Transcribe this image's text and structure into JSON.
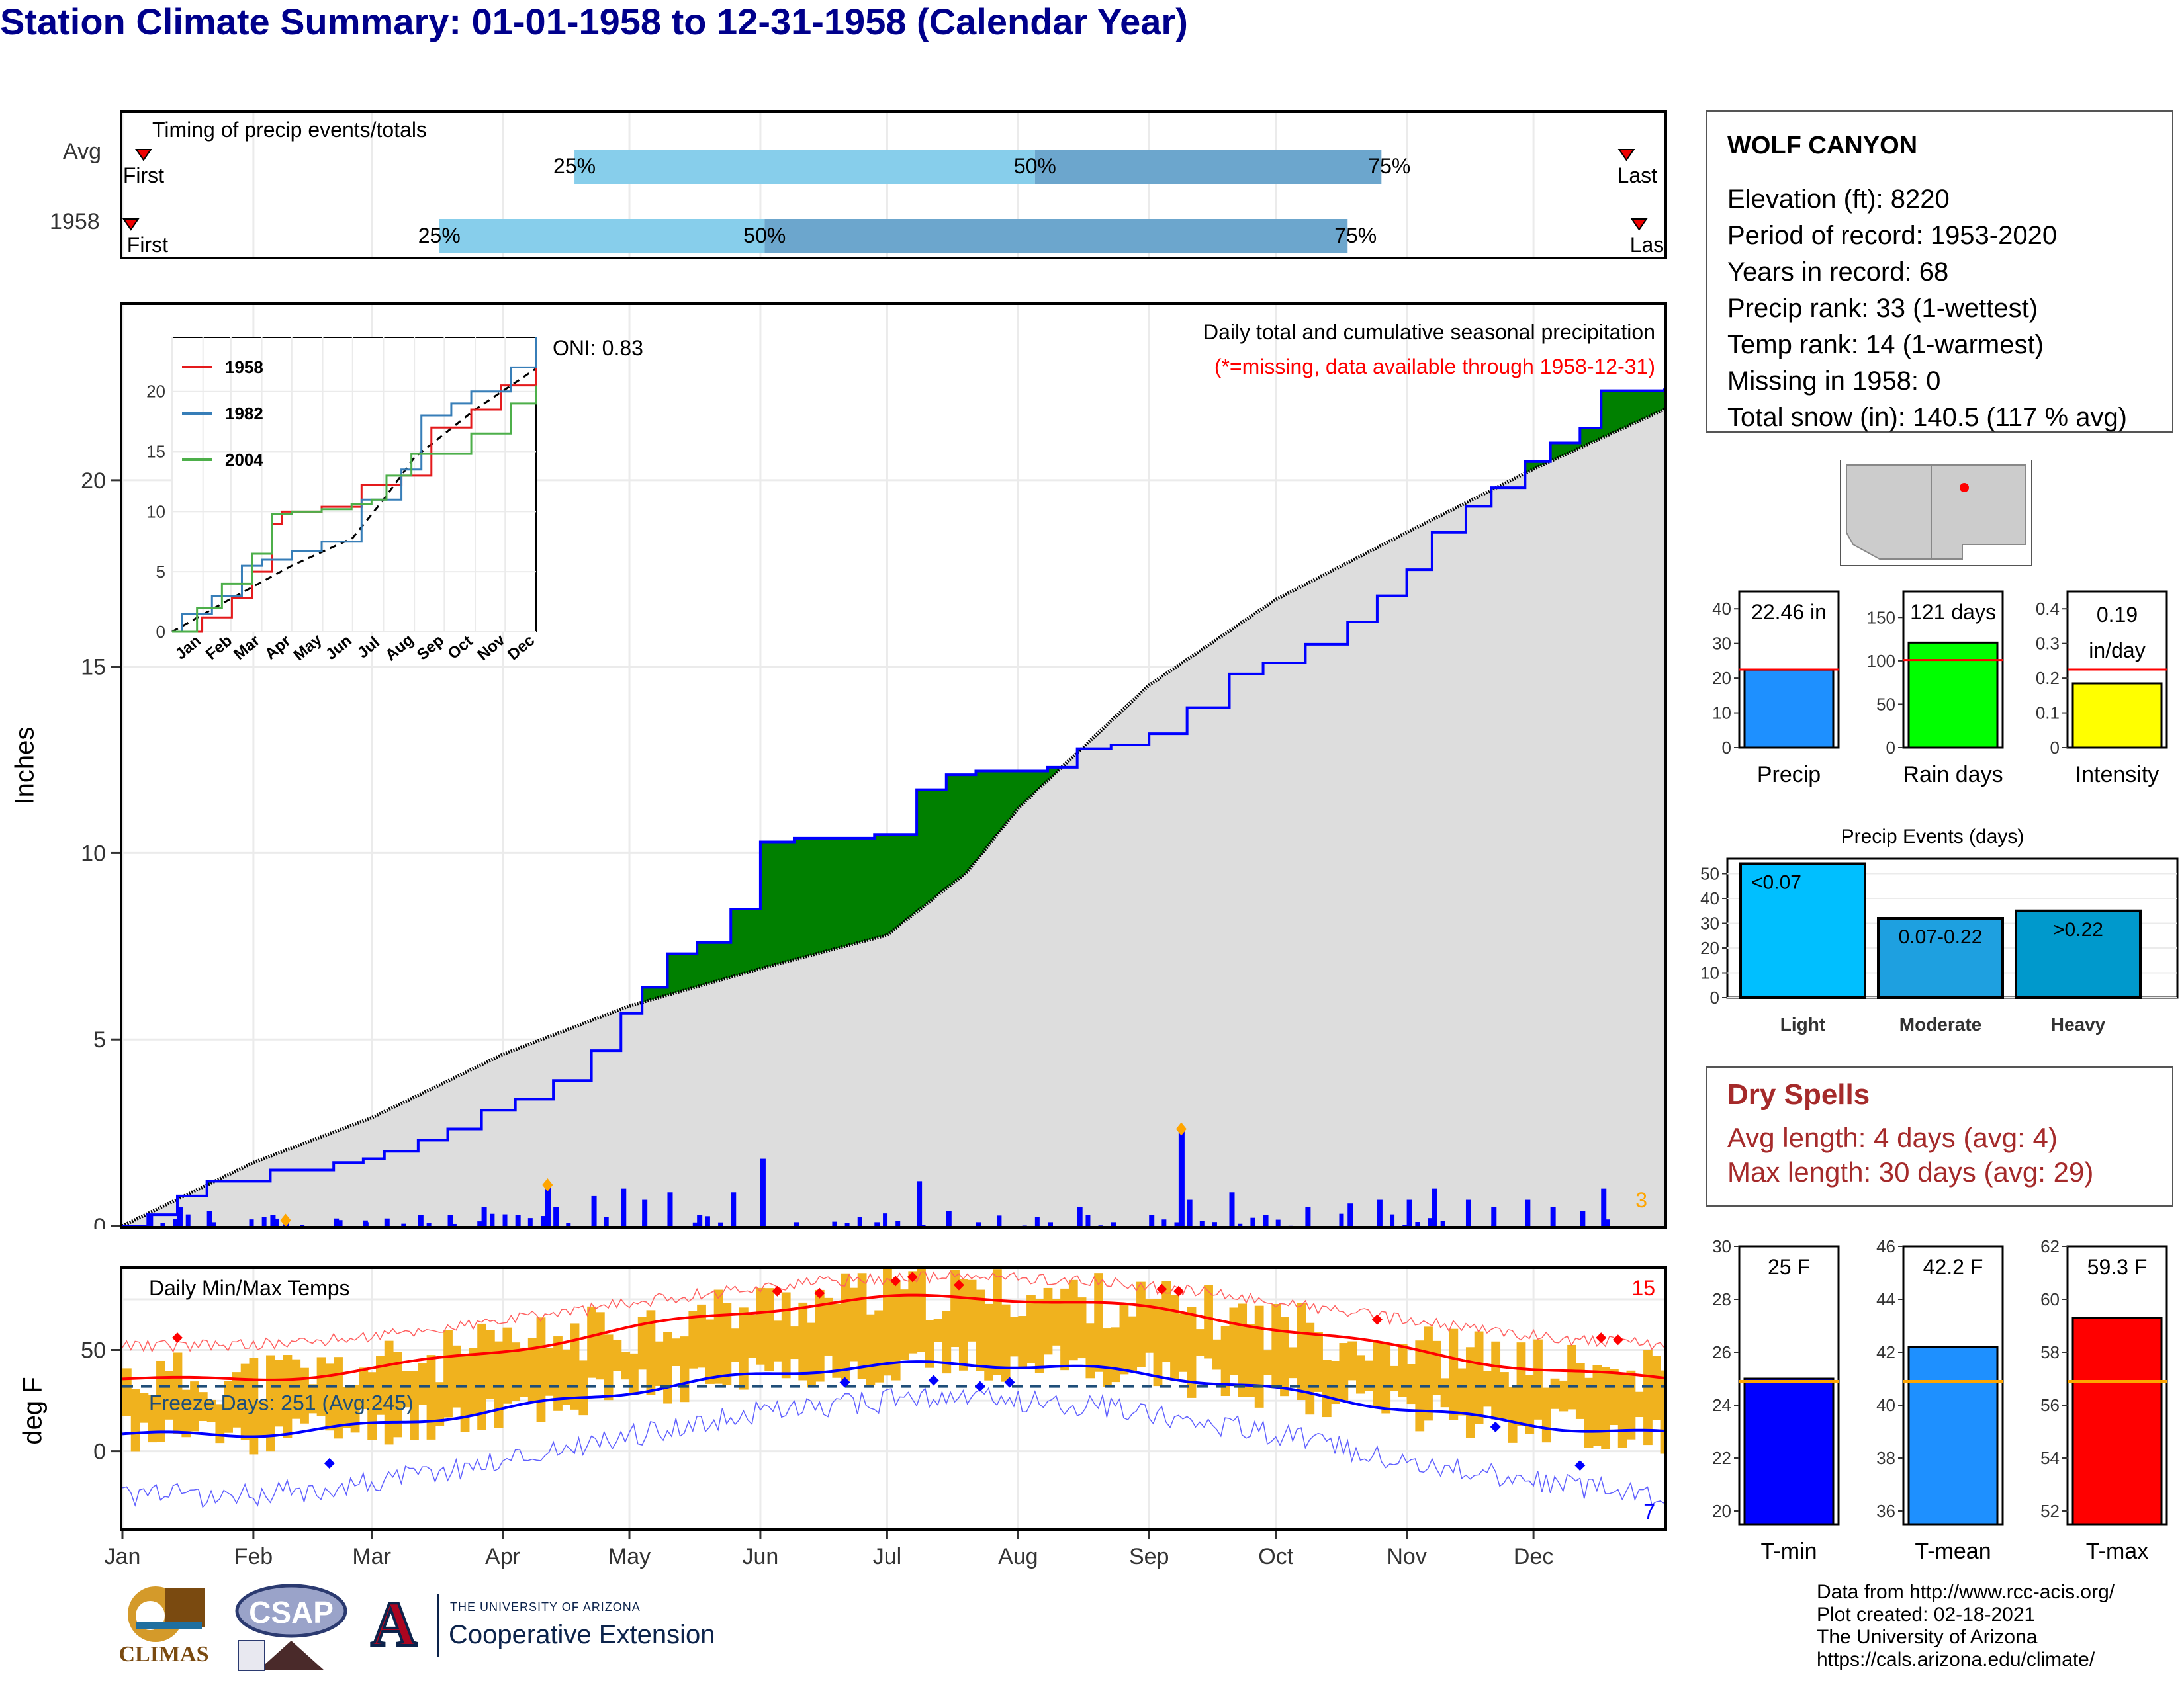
{
  "title": "Station Climate Summary: 01-01-1958 to 12-31-1958 (Calendar Year)",
  "timing": {
    "label": "Timing of precip events/totals",
    "rows": [
      {
        "name": "Avg",
        "first_label": "First",
        "last_label": "Last",
        "q25": "25%",
        "q50": "50%",
        "q75": "75%",
        "q25_day": 107,
        "q50_day": 216,
        "q75_day": 298,
        "first_day": 5,
        "last_day": 356
      },
      {
        "name": "1958",
        "first_label": "First",
        "last_label": "Last",
        "q25": "25%",
        "q50": "50%",
        "q75": "75%",
        "q25_day": 75,
        "q50_day": 152,
        "q75_day": 290,
        "first_day": 2,
        "last_day": 359
      }
    ]
  },
  "station": {
    "name": "WOLF CANYON",
    "elevation": "Elevation (ft): 8220",
    "period": "Period of record: 1953-2020",
    "years": "Years in record: 68",
    "precip_rank": "Precip rank: 33 (1-wettest)",
    "temp_rank": "Temp rank: 14 (1-warmest)",
    "missing": "Missing in 1958: 0",
    "snow": "Total snow (in): 140.5 (117 % avg)"
  },
  "precip_panel": {
    "ylabel": "Inches",
    "oni": "ONI: 0.83",
    "caption": "Daily total and cumulative seasonal precipitation",
    "missing_note": "(*=missing, data available through 1958-12-31)",
    "count_label": "3",
    "colors": {
      "above": "#008000",
      "below": "#7a4a10",
      "avg_fill": "#dddddd",
      "obs_line": "#0000ff"
    }
  },
  "inset": {
    "legend": [
      "1958",
      "1982",
      "2004"
    ],
    "colors": [
      "#e41a1c",
      "#377eb8",
      "#4daf4a"
    ]
  },
  "temp_panel": {
    "ylabel": "deg F",
    "caption": "Daily Min/Max Temps",
    "freeze": "Freeze Days: 251 (Avg:245)",
    "hot_count": "15",
    "cold_count": "7"
  },
  "months": [
    "Jan",
    "Feb",
    "Mar",
    "Apr",
    "May",
    "Jun",
    "Jul",
    "Aug",
    "Sep",
    "Oct",
    "Nov",
    "Dec"
  ],
  "mini_charts": [
    {
      "name": "Precip",
      "value_label": "22.46 in",
      "value": 22.46,
      "avg": 22.5,
      "ymax": 45,
      "ticks": [
        0,
        10,
        20,
        30,
        40
      ],
      "color": "#1e90ff"
    },
    {
      "name": "Rain days",
      "value_label": "121 days",
      "value": 121,
      "avg": 101,
      "ymax": 180,
      "ticks": [
        0,
        50,
        100,
        150
      ],
      "color": "#00ff00"
    },
    {
      "name": "Intensity",
      "value_label": "0.19 in/day",
      "value": 0.185,
      "avg": 0.225,
      "ymax": 0.45,
      "ticks": [
        0.0,
        0.1,
        0.2,
        0.3,
        0.4
      ],
      "color": "#ffff00"
    }
  ],
  "events": {
    "title": "Precip Events (days)",
    "categories": [
      "Light",
      "Moderate",
      "Heavy"
    ],
    "labels": [
      "<0.07",
      "0.07-0.22",
      ">0.22"
    ],
    "values": [
      54,
      32,
      35
    ],
    "ticks": [
      0,
      10,
      20,
      30,
      40,
      50
    ],
    "colors": [
      "#00bfff",
      "#1ea0e0",
      "#0099cc"
    ]
  },
  "dry_spells": {
    "title": "Dry Spells",
    "avg": "Avg length: 4 days (avg: 4)",
    "max": "Max length: 30 days (avg: 29)"
  },
  "temp_bars": [
    {
      "name": "T-min",
      "value_label": "25 F",
      "value": 25,
      "avg": 24.9,
      "ymin": 19.5,
      "ymax": 30,
      "ticks": [
        20,
        22,
        24,
        26,
        28,
        30
      ],
      "color": "#0000ff"
    },
    {
      "name": "T-mean",
      "value_label": "42.2 F",
      "value": 42.2,
      "avg": 40.9,
      "ymin": 35.5,
      "ymax": 46,
      "ticks": [
        36,
        38,
        40,
        42,
        44,
        46
      ],
      "color": "#1e90ff"
    },
    {
      "name": "T-max",
      "value_label": "59.3 F",
      "value": 59.3,
      "avg": 56.9,
      "ymin": 51.5,
      "ymax": 62,
      "ticks": [
        52,
        54,
        56,
        58,
        60,
        62
      ],
      "color": "#ff0000"
    }
  ],
  "footer": {
    "line1": "Data from http://www.rcc-acis.org/",
    "line2": "Plot created: 02-18-2021",
    "line3": "The University of Arizona",
    "line4": "https://cals.arizona.edu/climate/"
  },
  "logos": {
    "climas": "CLIMAS",
    "csap": "CSAP",
    "uofa_small": "THE UNIVERSITY OF ARIZONA",
    "coop": "Cooperative Extension",
    "az_letter": "A"
  }
}
